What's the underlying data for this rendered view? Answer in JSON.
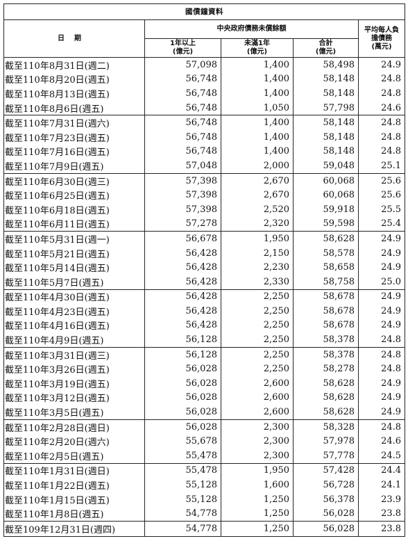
{
  "table_title": "國債鐘資料",
  "headers": {
    "date": "日期",
    "group": "中央政府債務未償餘額",
    "over1": "1年以上",
    "over1_unit": "(億元)",
    "under1": "未滿1年",
    "under1_unit": "(億元)",
    "total": "合計",
    "total_unit": "(億元)",
    "per_capita": "平均每人負擔債務",
    "per_capita_unit": "(萬元)"
  },
  "rows": [
    {
      "date": "截至110年8月31日(週二)",
      "over1": "57,098",
      "under1": "1,400",
      "total": "58,498",
      "per_capita": "24.9"
    },
    {
      "date": "截至110年8月20日(週五)",
      "over1": "56,748",
      "under1": "1,400",
      "total": "58,148",
      "per_capita": "24.8"
    },
    {
      "date": "截至110年8月13日(週五)",
      "over1": "56,748",
      "under1": "1,400",
      "total": "58,148",
      "per_capita": "24.8"
    },
    {
      "date": "截至110年8月6日(週五)",
      "over1": "56,748",
      "under1": "1,050",
      "total": "57,798",
      "per_capita": "24.6"
    },
    {
      "date": "截至110年7月31日(週六)",
      "over1": "56,748",
      "under1": "1,400",
      "total": "58,148",
      "per_capita": "24.8"
    },
    {
      "date": "截至110年7月23日(週五)",
      "over1": "56,748",
      "under1": "1,400",
      "total": "58,148",
      "per_capita": "24.8"
    },
    {
      "date": "截至110年7月16日(週五)",
      "over1": "56,748",
      "under1": "1,400",
      "total": "58,148",
      "per_capita": "24.8"
    },
    {
      "date": "截至110年7月9日(週五)",
      "over1": "57,048",
      "under1": "2,000",
      "total": "59,048",
      "per_capita": "25.1"
    },
    {
      "date": "截至110年6月30日(週三)",
      "over1": "57,398",
      "under1": "2,670",
      "total": "60,068",
      "per_capita": "25.6"
    },
    {
      "date": "截至110年6月25日(週五)",
      "over1": "57,398",
      "under1": "2,670",
      "total": "60,068",
      "per_capita": "25.6"
    },
    {
      "date": "截至110年6月18日(週五)",
      "over1": "57,398",
      "under1": "2,520",
      "total": "59,918",
      "per_capita": "25.5"
    },
    {
      "date": "截至110年6月11日(週五)",
      "over1": "57,278",
      "under1": "2,320",
      "total": "59,598",
      "per_capita": "25.4"
    },
    {
      "date": "截至110年5月31日(週一)",
      "over1": "56,678",
      "under1": "1,950",
      "total": "58,628",
      "per_capita": "24.9"
    },
    {
      "date": "截至110年5月21日(週五)",
      "over1": "56,428",
      "under1": "2,150",
      "total": "58,578",
      "per_capita": "24.9"
    },
    {
      "date": "截至110年5月14日(週五)",
      "over1": "56,428",
      "under1": "2,230",
      "total": "58,658",
      "per_capita": "24.9"
    },
    {
      "date": "截至110年5月7日(週五)",
      "over1": "56,428",
      "under1": "2,330",
      "total": "58,758",
      "per_capita": "25.0"
    },
    {
      "date": "截至110年4月30日(週五)",
      "over1": "56,428",
      "under1": "2,250",
      "total": "58,678",
      "per_capita": "24.9"
    },
    {
      "date": "截至110年4月23日(週五)",
      "over1": "56,428",
      "under1": "2,250",
      "total": "58,678",
      "per_capita": "24.9"
    },
    {
      "date": "截至110年4月16日(週五)",
      "over1": "56,428",
      "under1": "2,250",
      "total": "58,678",
      "per_capita": "24.9"
    },
    {
      "date": "截至110年4月9日(週五)",
      "over1": "56,128",
      "under1": "2,250",
      "total": "58,378",
      "per_capita": "24.8"
    },
    {
      "date": "截至110年3月31日(週三)",
      "over1": "56,128",
      "under1": "2,250",
      "total": "58,378",
      "per_capita": "24.8"
    },
    {
      "date": "截至110年3月26日(週五)",
      "over1": "56,028",
      "under1": "2,250",
      "total": "58,278",
      "per_capita": "24.8"
    },
    {
      "date": "截至110年3月19日(週五)",
      "over1": "56,028",
      "under1": "2,600",
      "total": "58,628",
      "per_capita": "24.9"
    },
    {
      "date": "截至110年3月12日(週五)",
      "over1": "56,028",
      "under1": "2,600",
      "total": "58,628",
      "per_capita": "24.9"
    },
    {
      "date": "截至110年3月5日(週五)",
      "over1": "56,028",
      "under1": "2,600",
      "total": "58,628",
      "per_capita": "24.9"
    },
    {
      "date": "截至110年2月28日(週日)",
      "over1": "56,028",
      "under1": "2,300",
      "total": "58,328",
      "per_capita": "24.8"
    },
    {
      "date": "截至110年2月20日(週六)",
      "over1": "55,678",
      "under1": "2,300",
      "total": "57,978",
      "per_capita": "24.6"
    },
    {
      "date": "截至110年2月5日(週五)",
      "over1": "55,478",
      "under1": "2,300",
      "total": "57,778",
      "per_capita": "24.5"
    },
    {
      "date": "截至110年1月31日(週日)",
      "over1": "55,478",
      "under1": "1,950",
      "total": "57,428",
      "per_capita": "24.4"
    },
    {
      "date": "截至110年1月22日(週五)",
      "over1": "55,128",
      "under1": "1,600",
      "total": "56,728",
      "per_capita": "24.1"
    },
    {
      "date": "截至110年1月15日(週五)",
      "over1": "55,128",
      "under1": "1,250",
      "total": "56,378",
      "per_capita": "23.9"
    },
    {
      "date": "截至110年1月8日(週五)",
      "over1": "54,778",
      "under1": "1,250",
      "total": "56,028",
      "per_capita": "23.8"
    },
    {
      "date": "截至109年12月31日(週四)",
      "over1": "54,778",
      "under1": "1,250",
      "total": "56,028",
      "per_capita": "23.8"
    }
  ]
}
